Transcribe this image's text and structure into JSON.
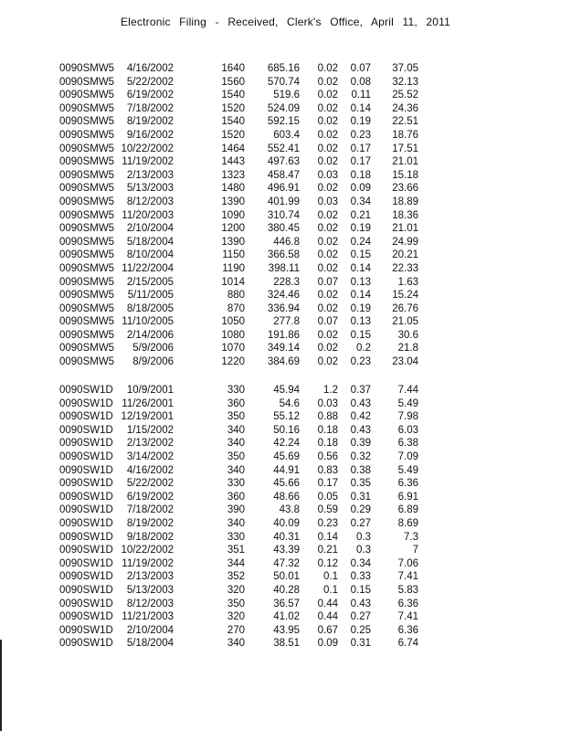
{
  "header": {
    "text": "Electronic  Filing  - Received,  Clerk's  Office,  April  11,  2011"
  },
  "tables": [
    {
      "rows": [
        [
          "0090SMW5",
          "4/16/2002",
          "1640",
          "685.16",
          "0.02",
          "0.07",
          "37.05"
        ],
        [
          "0090SMW5",
          "5/22/2002",
          "1560",
          "570.74",
          "0.02",
          "0.08",
          "32.13"
        ],
        [
          "0090SMW5",
          "6/19/2002",
          "1540",
          "519.6",
          "0.02",
          "0.11",
          "25.52"
        ],
        [
          "0090SMW5",
          "7/18/2002",
          "1520",
          "524.09",
          "0.02",
          "0.14",
          "24.36"
        ],
        [
          "0090SMW5",
          "8/19/2002",
          "1540",
          "592.15",
          "0.02",
          "0.19",
          "22.51"
        ],
        [
          "0090SMW5",
          "9/16/2002",
          "1520",
          "603.4",
          "0.02",
          "0.23",
          "18.76"
        ],
        [
          "0090SMW5",
          "10/22/2002",
          "1464",
          "552.41",
          "0.02",
          "0.17",
          "17.51"
        ],
        [
          "0090SMW5",
          "11/19/2002",
          "1443",
          "497.63",
          "0.02",
          "0.17",
          "21.01"
        ],
        [
          "0090SMW5",
          "2/13/2003",
          "1323",
          "458.47",
          "0.03",
          "0.18",
          "15.18"
        ],
        [
          "0090SMW5",
          "5/13/2003",
          "1480",
          "496.91",
          "0.02",
          "0.09",
          "23.66"
        ],
        [
          "0090SMW5",
          "8/12/2003",
          "1390",
          "401.99",
          "0.03",
          "0.34",
          "18.89"
        ],
        [
          "0090SMW5",
          "11/20/2003",
          "1090",
          "310.74",
          "0.02",
          "0.21",
          "18.36"
        ],
        [
          "0090SMW5",
          "2/10/2004",
          "1200",
          "380.45",
          "0.02",
          "0.19",
          "21.01"
        ],
        [
          "0090SMW5",
          "5/18/2004",
          "1390",
          "446.8",
          "0.02",
          "0.24",
          "24.99"
        ],
        [
          "0090SMW5",
          "8/10/2004",
          "1150",
          "366.58",
          "0.02",
          "0.15",
          "20.21"
        ],
        [
          "0090SMW5",
          "11/22/2004",
          "1190",
          "398.11",
          "0.02",
          "0.14",
          "22.33"
        ],
        [
          "0090SMW5",
          "2/15/2005",
          "1014",
          "228.3",
          "0.07",
          "0.13",
          "1.63"
        ],
        [
          "0090SMW5",
          "5/11/2005",
          "880",
          "324.46",
          "0.02",
          "0.14",
          "15.24"
        ],
        [
          "0090SMW5",
          "8/18/2005",
          "870",
          "336.94",
          "0.02",
          "0.19",
          "26.76"
        ],
        [
          "0090SMW5",
          "11/10/2005",
          "1050",
          "277.8",
          "0.07",
          "0.13",
          "21.05"
        ],
        [
          "0090SMW5",
          "2/14/2006",
          "1080",
          "191.86",
          "0.02",
          "0.15",
          "30.6"
        ],
        [
          "0090SMW5",
          "5/9/2006",
          "1070",
          "349.14",
          "0.02",
          "0.2",
          "21.8"
        ],
        [
          "0090SMW5",
          "8/9/2006",
          "1220",
          "384.69",
          "0.02",
          "0.23",
          "23.04"
        ]
      ]
    },
    {
      "rows": [
        [
          "0090SW1D",
          "10/9/2001",
          "330",
          "45.94",
          "1.2",
          "0.37",
          "7.44"
        ],
        [
          "0090SW1D",
          "11/26/2001",
          "360",
          "54.6",
          "0.03",
          "0.43",
          "5.49"
        ],
        [
          "0090SW1D",
          "12/19/2001",
          "350",
          "55.12",
          "0.88",
          "0.42",
          "7.98"
        ],
        [
          "0090SW1D",
          "1/15/2002",
          "340",
          "50.16",
          "0.18",
          "0.43",
          "6.03"
        ],
        [
          "0090SW1D",
          "2/13/2002",
          "340",
          "42.24",
          "0.18",
          "0.39",
          "6.38"
        ],
        [
          "0090SW1D",
          "3/14/2002",
          "350",
          "45.69",
          "0.56",
          "0.32",
          "7.09"
        ],
        [
          "0090SW1D",
          "4/16/2002",
          "340",
          "44.91",
          "0.83",
          "0.38",
          "5.49"
        ],
        [
          "0090SW1D",
          "5/22/2002",
          "330",
          "45.66",
          "0.17",
          "0.35",
          "6.36"
        ],
        [
          "0090SW1D",
          "6/19/2002",
          "360",
          "48.66",
          "0.05",
          "0.31",
          "6.91"
        ],
        [
          "0090SW1D",
          "7/18/2002",
          "390",
          "43.8",
          "0.59",
          "0.29",
          "6.89"
        ],
        [
          "0090SW1D",
          "8/19/2002",
          "340",
          "40.09",
          "0.23",
          "0.27",
          "8.69"
        ],
        [
          "0090SW1D",
          "9/18/2002",
          "330",
          "40.31",
          "0.14",
          "0.3",
          "7.3"
        ],
        [
          "0090SW1D",
          "10/22/2002",
          "351",
          "43.39",
          "0.21",
          "0.3",
          "7"
        ],
        [
          "0090SW1D",
          "11/19/2002",
          "344",
          "47.32",
          "0.12",
          "0.34",
          "7.06"
        ],
        [
          "0090SW1D",
          "2/13/2003",
          "352",
          "50.01",
          "0.1",
          "0.33",
          "7.41"
        ],
        [
          "0090SW1D",
          "5/13/2003",
          "320",
          "40.28",
          "0.1",
          "0.15",
          "5.83"
        ],
        [
          "0090SW1D",
          "8/12/2003",
          "350",
          "36.57",
          "0.44",
          "0.43",
          "6.36"
        ],
        [
          "0090SW1D",
          "11/21/2003",
          "320",
          "41.02",
          "0.44",
          "0.27",
          "7.41"
        ],
        [
          "0090SW1D",
          "2/10/2004",
          "270",
          "43.95",
          "0.67",
          "0.25",
          "6.36"
        ],
        [
          "0090SW1D",
          "5/18/2004",
          "340",
          "38.51",
          "0.09",
          "0.31",
          "6.74"
        ]
      ]
    }
  ]
}
